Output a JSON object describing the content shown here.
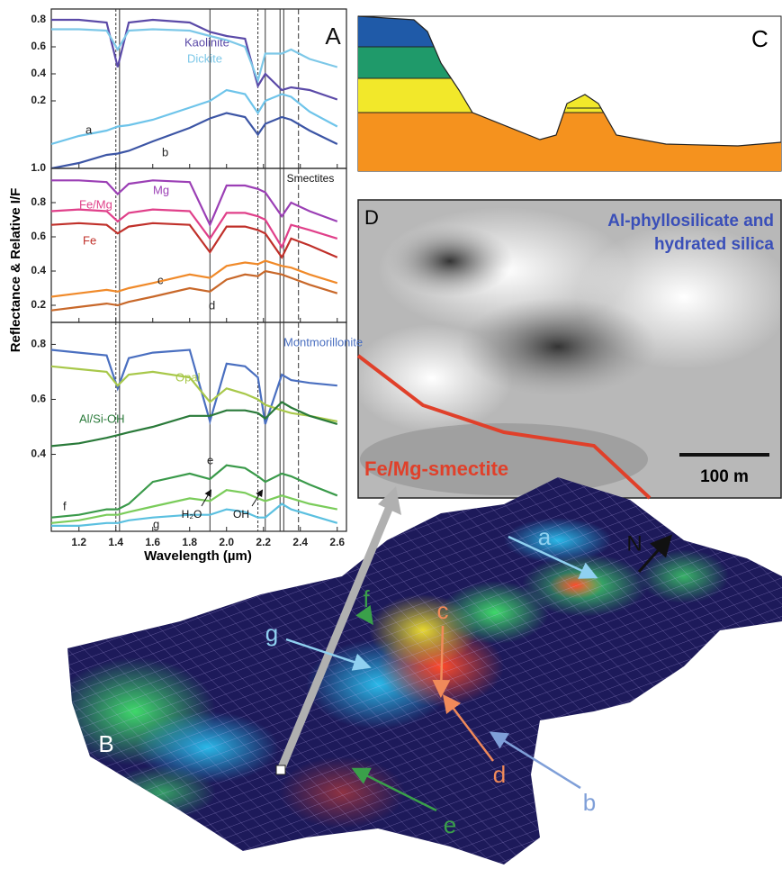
{
  "chart_data": [
    {
      "type": "line",
      "xlim": [
        1.05,
        2.65
      ],
      "ylim": [
        -0.3,
        0.88
      ],
      "yticks": [
        0.2,
        0.4,
        0.6,
        0.8
      ],
      "vlines": [
        1.4,
        1.42,
        1.91,
        2.17,
        2.21,
        2.29,
        2.31,
        2.39
      ],
      "x": [
        1.05,
        1.2,
        1.35,
        1.41,
        1.47,
        1.6,
        1.8,
        1.91,
        2.0,
        2.1,
        2.17,
        2.21,
        2.3,
        2.35,
        2.45,
        2.6
      ],
      "annotations": [
        "A"
      ],
      "series": [
        {
          "name": "Kaolinite",
          "color": "#5b4aa8",
          "values": [
            0.8,
            0.8,
            0.78,
            0.45,
            0.78,
            0.8,
            0.78,
            0.71,
            0.68,
            0.66,
            0.31,
            0.4,
            0.28,
            0.3,
            0.28,
            0.21
          ]
        },
        {
          "name": "Dickite",
          "color": "#7dc8e8",
          "values": [
            0.73,
            0.73,
            0.72,
            0.58,
            0.72,
            0.73,
            0.72,
            0.68,
            0.65,
            0.6,
            0.35,
            0.55,
            0.55,
            0.58,
            0.51,
            0.45
          ]
        },
        {
          "name": "a",
          "color": "#6ec4ea",
          "values": [
            -0.12,
            -0.06,
            -0.02,
            0.01,
            0.02,
            0.06,
            0.15,
            0.2,
            0.28,
            0.25,
            0.11,
            0.2,
            0.25,
            0.23,
            0.12,
            0.01
          ]
        },
        {
          "name": "b",
          "color": "#3c55a5",
          "values": [
            -0.3,
            -0.26,
            -0.2,
            -0.19,
            -0.17,
            -0.1,
            0.0,
            0.07,
            0.11,
            0.08,
            -0.05,
            0.03,
            0.08,
            0.06,
            -0.02,
            -0.12
          ]
        }
      ]
    },
    {
      "type": "line",
      "xlim": [
        1.05,
        2.65
      ],
      "ylim": [
        0.1,
        1.0
      ],
      "yticks": [
        0.2,
        0.4,
        0.6,
        0.8,
        {
          "value": 1,
          "label": "1.0"
        }
      ],
      "vlines": [
        1.4,
        1.42,
        1.91,
        2.17,
        2.21,
        2.29,
        2.31,
        2.39
      ],
      "x": [
        1.05,
        1.2,
        1.35,
        1.41,
        1.47,
        1.6,
        1.8,
        1.91,
        2.0,
        2.1,
        2.17,
        2.21,
        2.3,
        2.35,
        2.45,
        2.6
      ],
      "annotations": [
        "Smectites"
      ],
      "series": [
        {
          "name": "Mg",
          "color": "#9b3fb5",
          "values": [
            0.93,
            0.93,
            0.92,
            0.85,
            0.91,
            0.93,
            0.92,
            0.67,
            0.9,
            0.9,
            0.88,
            0.86,
            0.72,
            0.8,
            0.75,
            0.69
          ]
        },
        {
          "name": "Fe/Mg",
          "color": "#e0408a",
          "values": [
            0.75,
            0.76,
            0.75,
            0.69,
            0.74,
            0.76,
            0.75,
            0.59,
            0.74,
            0.74,
            0.72,
            0.7,
            0.54,
            0.67,
            0.64,
            0.59
          ]
        },
        {
          "name": "Fe",
          "color": "#c0302a",
          "values": [
            0.67,
            0.68,
            0.67,
            0.62,
            0.66,
            0.68,
            0.67,
            0.51,
            0.66,
            0.66,
            0.64,
            0.62,
            0.48,
            0.59,
            0.55,
            0.48
          ]
        },
        {
          "name": "c",
          "color": "#f08a2a",
          "values": [
            0.25,
            0.27,
            0.29,
            0.28,
            0.3,
            0.33,
            0.38,
            0.36,
            0.43,
            0.45,
            0.44,
            0.46,
            0.43,
            0.42,
            0.38,
            0.33
          ]
        },
        {
          "name": "d",
          "color": "#c8682a",
          "values": [
            0.17,
            0.19,
            0.21,
            0.2,
            0.22,
            0.25,
            0.3,
            0.28,
            0.35,
            0.38,
            0.37,
            0.4,
            0.38,
            0.36,
            0.32,
            0.27
          ]
        }
      ]
    },
    {
      "type": "line",
      "xlim": [
        1.05,
        2.65
      ],
      "ylim": [
        0.12,
        0.88
      ],
      "yticks": [
        0.4,
        0.6,
        0.8
      ],
      "xticks": [
        1.2,
        1.4,
        1.6,
        1.8,
        {
          "value": 2,
          "label": "2.0"
        },
        2.2,
        2.4,
        2.6
      ],
      "vlines": [
        1.4,
        1.42,
        1.91,
        2.17,
        2.21,
        2.29,
        2.31,
        2.39
      ],
      "x": [
        1.05,
        1.2,
        1.35,
        1.41,
        1.47,
        1.6,
        1.8,
        1.91,
        2.0,
        2.1,
        2.17,
        2.21,
        2.3,
        2.35,
        2.45,
        2.6
      ],
      "annotations": [
        "H₂O",
        "OH"
      ],
      "series": [
        {
          "name": "Montmorillonite",
          "color": "#4a6fc0",
          "values": [
            0.78,
            0.77,
            0.76,
            0.64,
            0.75,
            0.77,
            0.78,
            0.52,
            0.73,
            0.72,
            0.68,
            0.51,
            0.69,
            0.67,
            0.66,
            0.65
          ]
        },
        {
          "name": "Opal",
          "color": "#a8c84a",
          "values": [
            0.72,
            0.71,
            0.7,
            0.65,
            0.69,
            0.7,
            0.68,
            0.59,
            0.64,
            0.62,
            0.6,
            0.58,
            0.56,
            0.55,
            0.54,
            0.52
          ]
        },
        {
          "name": "Al/Si-OH",
          "color": "#2a7a3a",
          "values": [
            0.43,
            0.44,
            0.46,
            0.47,
            0.48,
            0.5,
            0.54,
            0.54,
            0.56,
            0.56,
            0.55,
            0.53,
            0.59,
            0.57,
            0.54,
            0.51
          ]
        },
        {
          "name": "e",
          "color": "#3a9a4a",
          "values": [
            0.17,
            0.18,
            0.2,
            0.2,
            0.22,
            0.3,
            0.33,
            0.31,
            0.36,
            0.35,
            0.32,
            0.3,
            0.33,
            0.32,
            0.29,
            0.25
          ]
        },
        {
          "name": "f",
          "color": "#7acc5a",
          "values": [
            0.15,
            0.16,
            0.18,
            0.18,
            0.19,
            0.21,
            0.24,
            0.23,
            0.27,
            0.26,
            0.24,
            0.23,
            0.25,
            0.24,
            0.22,
            0.2
          ]
        },
        {
          "name": "g",
          "color": "#5bc0e0",
          "values": [
            0.14,
            0.14,
            0.15,
            0.15,
            0.16,
            0.17,
            0.18,
            0.18,
            0.2,
            0.19,
            0.17,
            0.17,
            0.22,
            0.2,
            0.18,
            0.15
          ]
        }
      ]
    }
  ],
  "panel_a": {
    "x_label": "Wavelength (µm)",
    "y_label": "Reflectance & Relative I/F"
  },
  "panel_b": {
    "label": "B",
    "north": "N",
    "markers": [
      "a",
      "b",
      "c",
      "d",
      "e",
      "f",
      "g"
    ]
  },
  "panel_c": {
    "label": "C"
  },
  "panel_d": {
    "label": "D",
    "title_lines": [
      "Al-phyllosilicate and",
      "hydrated silica"
    ],
    "unit_label": "Fe/Mg-smectite",
    "scale_label": "100 m"
  }
}
